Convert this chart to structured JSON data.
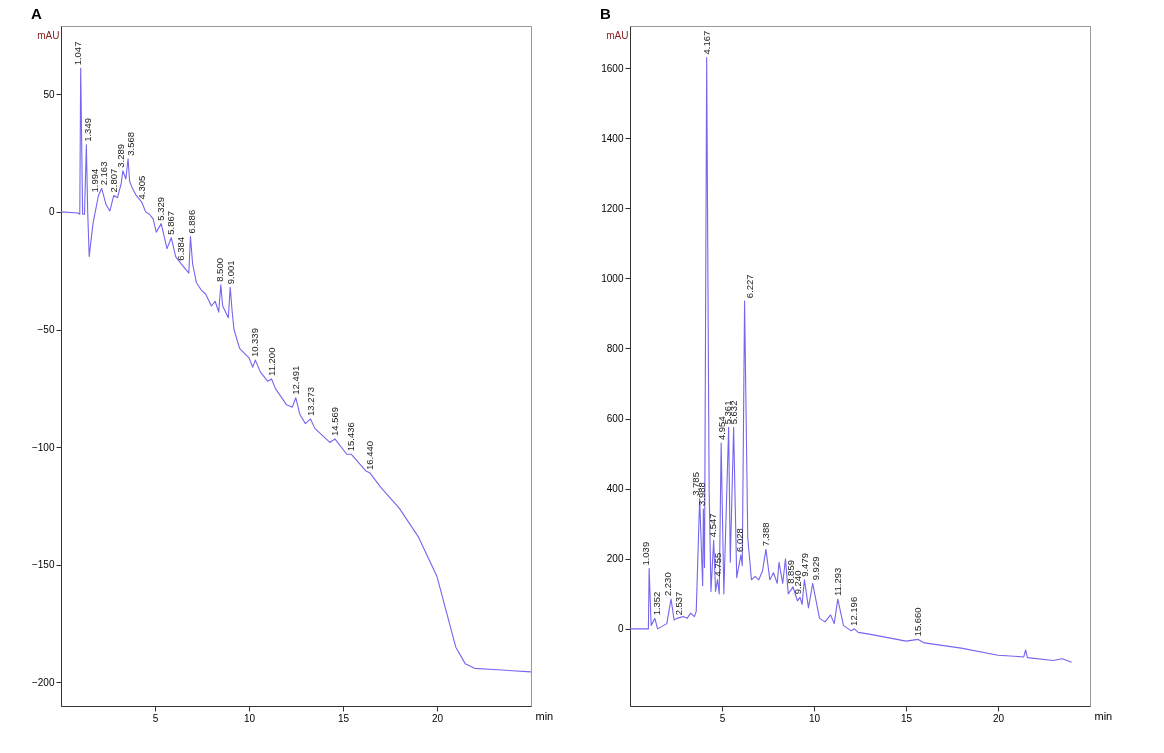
{
  "chart_data": [
    {
      "type": "line",
      "title": "A",
      "xlabel": "min",
      "ylabel": "mAU",
      "xlim": [
        0,
        25
      ],
      "ylim": [
        -210,
        79
      ],
      "xticks": [
        5,
        10,
        15,
        20
      ],
      "yticks": [
        -200,
        -150,
        -100,
        -50,
        0,
        50
      ],
      "x": [
        0,
        0.9,
        1.0,
        1.047,
        1.15,
        1.25,
        1.349,
        1.42,
        1.5,
        1.7,
        1.994,
        2.163,
        2.4,
        2.6,
        2.807,
        3.0,
        3.2,
        3.289,
        3.45,
        3.568,
        3.65,
        3.8,
        4.0,
        4.305,
        4.5,
        4.7,
        4.9,
        5.07,
        5.329,
        5.64,
        5.867,
        6.1,
        6.384,
        6.8,
        6.886,
        7.0,
        7.2,
        7.44,
        7.7,
        8.0,
        8.2,
        8.39,
        8.5,
        8.6,
        8.9,
        9.001,
        9.1,
        9.2,
        9.5,
        10.0,
        10.2,
        10.339,
        10.6,
        11.0,
        11.2,
        11.4,
        12.0,
        12.3,
        12.491,
        12.7,
        13.0,
        13.273,
        13.5,
        14.3,
        14.569,
        15.2,
        15.436,
        16.2,
        16.44,
        17,
        18,
        19,
        20,
        20.5,
        21,
        21.5,
        22,
        23,
        24,
        25
      ],
      "series": [
        {
          "color": "#7466ee",
          "values": [
            0,
            -0.5,
            -1,
            61,
            -1,
            -1,
            28.5,
            0,
            -19,
            -5,
            7,
            10,
            3,
            0.4,
            7,
            6,
            12,
            17.5,
            14,
            22.6,
            13,
            10,
            7,
            4,
            0,
            -1,
            -3,
            -8.6,
            -5,
            -15.6,
            -11,
            -19,
            -22,
            -26,
            -10.5,
            -22,
            -30,
            -33,
            -35,
            -40,
            -38,
            -42.6,
            -31,
            -40,
            -45,
            -32,
            -42,
            -50,
            -58,
            -62,
            -66,
            -63,
            -68,
            -72,
            -71,
            -75,
            -82,
            -83,
            -79,
            -86,
            -90,
            -88,
            -92,
            -98,
            -96.5,
            -103,
            -103,
            -110,
            -111,
            -117,
            -126,
            -138,
            -155,
            -170,
            -185,
            -192,
            -194,
            -194.5,
            -195,
            -195.5
          ]
        }
      ],
      "annotations": [
        {
          "text": "1.047",
          "x": 1.047,
          "y": 61
        },
        {
          "text": "1.349",
          "x": 1.349,
          "y": 28.5
        },
        {
          "text": "1.994",
          "x": 1.994,
          "y": 7
        },
        {
          "text": "2.163",
          "x": 2.163,
          "y": 10
        },
        {
          "text": "2.807",
          "x": 2.807,
          "y": 7
        },
        {
          "text": "3.289",
          "x": 3.289,
          "y": 17.5
        },
        {
          "text": "3.568",
          "x": 3.568,
          "y": 22.6
        },
        {
          "text": "4.305",
          "x": 4.305,
          "y": 4
        },
        {
          "text": "5.329",
          "x": 5.329,
          "y": -5
        },
        {
          "text": "5.867",
          "x": 5.867,
          "y": -11
        },
        {
          "text": "6.384",
          "x": 6.384,
          "y": -22
        },
        {
          "text": "6.886",
          "x": 6.886,
          "y": -10.5
        },
        {
          "text": "8.500",
          "x": 8.5,
          "y": -31
        },
        {
          "text": "9.001",
          "x": 9.001,
          "y": -32
        },
        {
          "text": "10.339",
          "x": 10.339,
          "y": -63
        },
        {
          "text": "11.200",
          "x": 11.2,
          "y": -71
        },
        {
          "text": "12.491",
          "x": 12.491,
          "y": -79
        },
        {
          "text": "13.273",
          "x": 13.273,
          "y": -88
        },
        {
          "text": "14.569",
          "x": 14.569,
          "y": -96.5
        },
        {
          "text": "15.436",
          "x": 15.436,
          "y": -103
        },
        {
          "text": "16.440",
          "x": 16.44,
          "y": -111
        }
      ]
    },
    {
      "type": "line",
      "title": "B",
      "xlabel": "min",
      "ylabel": "mAU",
      "xlim": [
        0,
        25
      ],
      "ylim": [
        -220,
        1720
      ],
      "xticks": [
        5,
        10,
        15,
        20
      ],
      "yticks": [
        0,
        200,
        400,
        600,
        800,
        1000,
        1200,
        1400,
        1600
      ],
      "x": [
        0,
        1.0,
        1.039,
        1.15,
        1.352,
        1.5,
        2.0,
        2.23,
        2.4,
        2.537,
        2.9,
        3.1,
        3.3,
        3.5,
        3.6,
        3.785,
        3.95,
        3.988,
        4.05,
        4.167,
        4.3,
        4.4,
        4.547,
        4.65,
        4.755,
        4.85,
        4.954,
        5.1,
        5.361,
        5.45,
        5.632,
        5.8,
        6.028,
        6.1,
        6.227,
        6.4,
        6.6,
        6.8,
        7.0,
        7.2,
        7.388,
        7.6,
        7.8,
        8.0,
        8.1,
        8.3,
        8.45,
        8.6,
        8.859,
        9.1,
        9.24,
        9.35,
        9.479,
        9.7,
        9.929,
        10.3,
        10.6,
        10.9,
        11.1,
        11.293,
        11.6,
        12.0,
        12.196,
        12.4,
        13.0,
        14.0,
        15.0,
        15.66,
        16.0,
        18.0,
        20.0,
        21.4,
        21.5,
        21.6,
        23.0,
        23.5,
        24.0
      ],
      "series": [
        {
          "color": "#7466ee",
          "values": [
            0,
            0,
            172,
            10,
            30,
            0,
            15,
            85,
            25,
            30,
            35,
            30,
            45,
            35,
            50,
            371,
            123,
            342,
            175,
            1630,
            400,
            107,
            253,
            107,
            141,
            100,
            530,
            100,
            575,
            190,
            575,
            146,
            211,
            180,
            935,
            260,
            140,
            150,
            140,
            165,
            227,
            140,
            160,
            130,
            190,
            130,
            200,
            100,
            120,
            80,
            90,
            70,
            140,
            60,
            130,
            30,
            20,
            40,
            15,
            85,
            10,
            -5,
            0,
            -10,
            -15,
            -25,
            -35,
            -30,
            -40,
            -55,
            -75,
            -80,
            -60,
            -82,
            -90,
            -85,
            -95
          ]
        }
      ],
      "annotations": [
        {
          "text": "1.039",
          "x": 1.039,
          "y": 172
        },
        {
          "text": "1.352",
          "x": 1.352,
          "y": 30
        },
        {
          "text": "2.230",
          "x": 2.23,
          "y": 85
        },
        {
          "text": "2.537",
          "x": 2.537,
          "y": 30
        },
        {
          "text": "3.785",
          "x": 3.785,
          "y": 371
        },
        {
          "text": "3.988",
          "x": 3.988,
          "y": 342
        },
        {
          "text": "4.167",
          "x": 4.167,
          "y": 1630
        },
        {
          "text": "4.547",
          "x": 4.547,
          "y": 253
        },
        {
          "text": "4.755",
          "x": 4.755,
          "y": 141
        },
        {
          "text": "4.954",
          "x": 4.954,
          "y": 530
        },
        {
          "text": "5.361",
          "x": 5.361,
          "y": 575
        },
        {
          "text": "5.632",
          "x": 5.632,
          "y": 575
        },
        {
          "text": "6.028",
          "x": 6.028,
          "y": 211
        },
        {
          "text": "6.227",
          "x": 6.227,
          "y": 935
        },
        {
          "text": "7.388",
          "x": 7.388,
          "y": 227
        },
        {
          "text": "8.859",
          "x": 8.859,
          "y": 120
        },
        {
          "text": "9.240",
          "x": 9.24,
          "y": 90
        },
        {
          "text": "9.479",
          "x": 9.479,
          "y": 140
        },
        {
          "text": "9.929",
          "x": 9.929,
          "y": 130
        },
        {
          "text": "11.293",
          "x": 11.293,
          "y": 85
        },
        {
          "text": "12.196",
          "x": 12.196,
          "y": 0
        },
        {
          "text": "15.660",
          "x": 15.66,
          "y": -30
        }
      ]
    }
  ]
}
